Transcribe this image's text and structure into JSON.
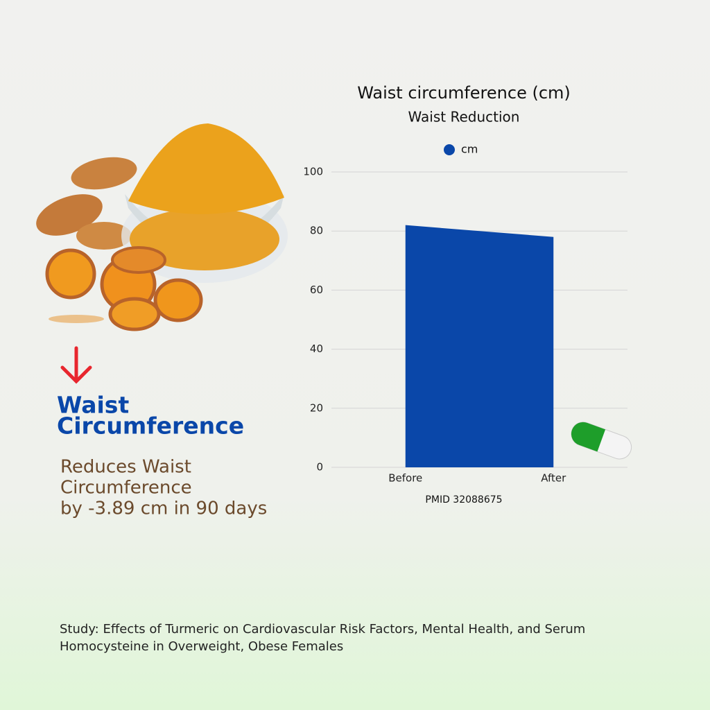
{
  "panel": {
    "heading": [
      "Waist",
      "Circumference"
    ],
    "summary": [
      "Reduces Waist",
      "Circumference",
      "by -3.89 cm in 90 days"
    ]
  },
  "chart_data": {
    "type": "area",
    "title": "Waist circumference (cm)",
    "subtitle": "Waist Reduction",
    "categories": [
      "Before",
      "After"
    ],
    "series": [
      {
        "name": "cm",
        "color": "#0a47a9",
        "values": [
          82,
          78
        ]
      }
    ],
    "ylim": [
      0,
      100
    ],
    "yticks": [
      0,
      20,
      40,
      60,
      80,
      100
    ],
    "grid": true,
    "legend": "top",
    "source": "PMID 32088675"
  },
  "footer": {
    "study": [
      "Study: Effects of Turmeric on Cardiovascular Risk Factors, Mental Health, and Serum",
      "Homocysteine in Overweight, Obese Females"
    ]
  }
}
